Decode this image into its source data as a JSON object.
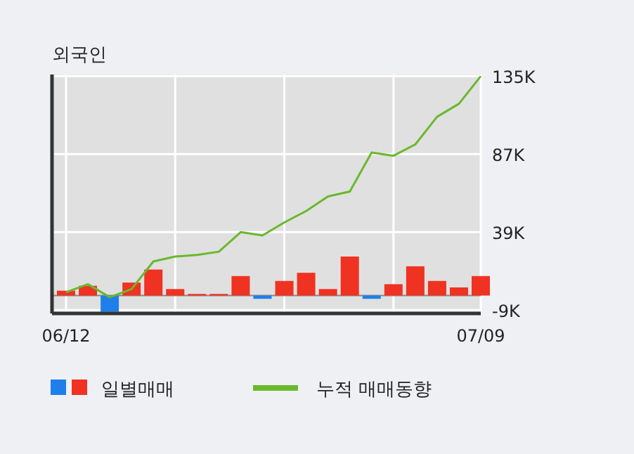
{
  "chart_data": {
    "type": "bar",
    "title": "외국인",
    "categories": [
      "06/12",
      null,
      null,
      null,
      null,
      null,
      null,
      null,
      null,
      null,
      null,
      null,
      null,
      null,
      null,
      null,
      null,
      null,
      null,
      "07/09"
    ],
    "series": [
      {
        "name": "일별매매",
        "colors": [
          "#f03222",
          "#f03222",
          "#1f7fea",
          "#f03222",
          "#f03222",
          "#f03222",
          "#f03222",
          "#f03222",
          "#f03222",
          "#1f7fea",
          "#f03222",
          "#f03222",
          "#f03222",
          "#f03222",
          "#1f7fea",
          "#f03222",
          "#f03222",
          "#f03222",
          "#f03222",
          "#f03222"
        ],
        "values": [
          3,
          6,
          -10,
          8,
          16,
          4,
          1,
          1,
          12,
          -2,
          9,
          14,
          4,
          24,
          -2,
          7,
          18,
          9,
          5,
          12
        ]
      },
      {
        "name": "누적 매매동향",
        "type": "line",
        "color": "#6ab82c",
        "values": [
          2,
          7,
          -1,
          4,
          21,
          24,
          25,
          27,
          39,
          37,
          45,
          52,
          61,
          64,
          88,
          86,
          93,
          110,
          118,
          135
        ]
      }
    ],
    "ylim": [
      -11,
      136
    ],
    "yticks": [
      {
        "value": -9,
        "label": "-9K"
      },
      {
        "value": 39,
        "label": "39K"
      },
      {
        "value": 87,
        "label": "87K"
      },
      {
        "value": 135,
        "label": "135K"
      }
    ],
    "grid": true,
    "legend": "bottom"
  }
}
